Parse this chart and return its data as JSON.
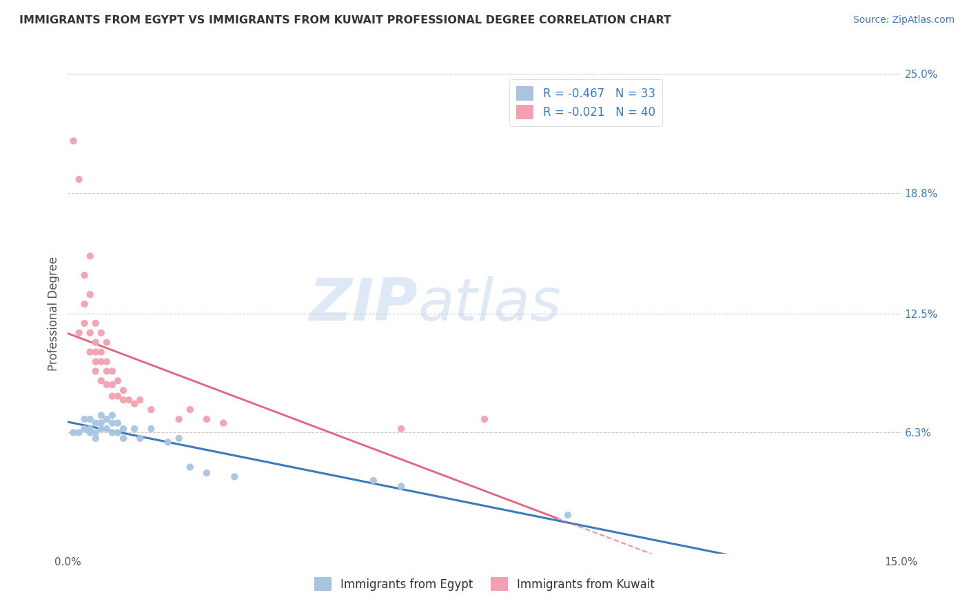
{
  "title": "IMMIGRANTS FROM EGYPT VS IMMIGRANTS FROM KUWAIT PROFESSIONAL DEGREE CORRELATION CHART",
  "source_text": "Source: ZipAtlas.com",
  "ylabel": "Professional Degree",
  "xlim": [
    0.0,
    0.15
  ],
  "ylim": [
    0.0,
    0.25
  ],
  "y_tick_labels_right": [
    "25.0%",
    "18.8%",
    "12.5%",
    "6.3%"
  ],
  "y_ticks_right": [
    0.25,
    0.188,
    0.125,
    0.063
  ],
  "legend_label1": "R = -0.467   N = 33",
  "legend_label2": "R = -0.021   N = 40",
  "color_egypt": "#a8c4e0",
  "color_kuwait": "#f4a0b0",
  "line_color_egypt": "#3a7abf",
  "line_color_kuwait": "#e8607a",
  "egypt_x": [
    0.001,
    0.002,
    0.003,
    0.003,
    0.004,
    0.004,
    0.004,
    0.005,
    0.005,
    0.005,
    0.006,
    0.006,
    0.006,
    0.007,
    0.007,
    0.008,
    0.008,
    0.008,
    0.009,
    0.009,
    0.01,
    0.01,
    0.012,
    0.013,
    0.015,
    0.018,
    0.02,
    0.022,
    0.025,
    0.03,
    0.055,
    0.06,
    0.09
  ],
  "egypt_y": [
    0.063,
    0.063,
    0.07,
    0.065,
    0.07,
    0.065,
    0.063,
    0.068,
    0.063,
    0.06,
    0.072,
    0.068,
    0.065,
    0.07,
    0.065,
    0.072,
    0.068,
    0.063,
    0.068,
    0.063,
    0.065,
    0.06,
    0.065,
    0.06,
    0.065,
    0.058,
    0.06,
    0.045,
    0.042,
    0.04,
    0.038,
    0.035,
    0.02
  ],
  "kuwait_x": [
    0.001,
    0.002,
    0.002,
    0.003,
    0.003,
    0.003,
    0.004,
    0.004,
    0.004,
    0.004,
    0.005,
    0.005,
    0.005,
    0.005,
    0.005,
    0.006,
    0.006,
    0.006,
    0.006,
    0.007,
    0.007,
    0.007,
    0.007,
    0.008,
    0.008,
    0.008,
    0.009,
    0.009,
    0.01,
    0.01,
    0.011,
    0.012,
    0.013,
    0.015,
    0.02,
    0.022,
    0.025,
    0.028,
    0.06,
    0.075
  ],
  "kuwait_y": [
    0.215,
    0.195,
    0.115,
    0.145,
    0.13,
    0.12,
    0.155,
    0.135,
    0.115,
    0.105,
    0.12,
    0.11,
    0.105,
    0.1,
    0.095,
    0.115,
    0.105,
    0.1,
    0.09,
    0.11,
    0.1,
    0.095,
    0.088,
    0.095,
    0.088,
    0.082,
    0.09,
    0.082,
    0.085,
    0.08,
    0.08,
    0.078,
    0.08,
    0.075,
    0.07,
    0.075,
    0.07,
    0.068,
    0.065,
    0.07
  ],
  "grid_color": "#cccccc",
  "bg_color": "#ffffff"
}
